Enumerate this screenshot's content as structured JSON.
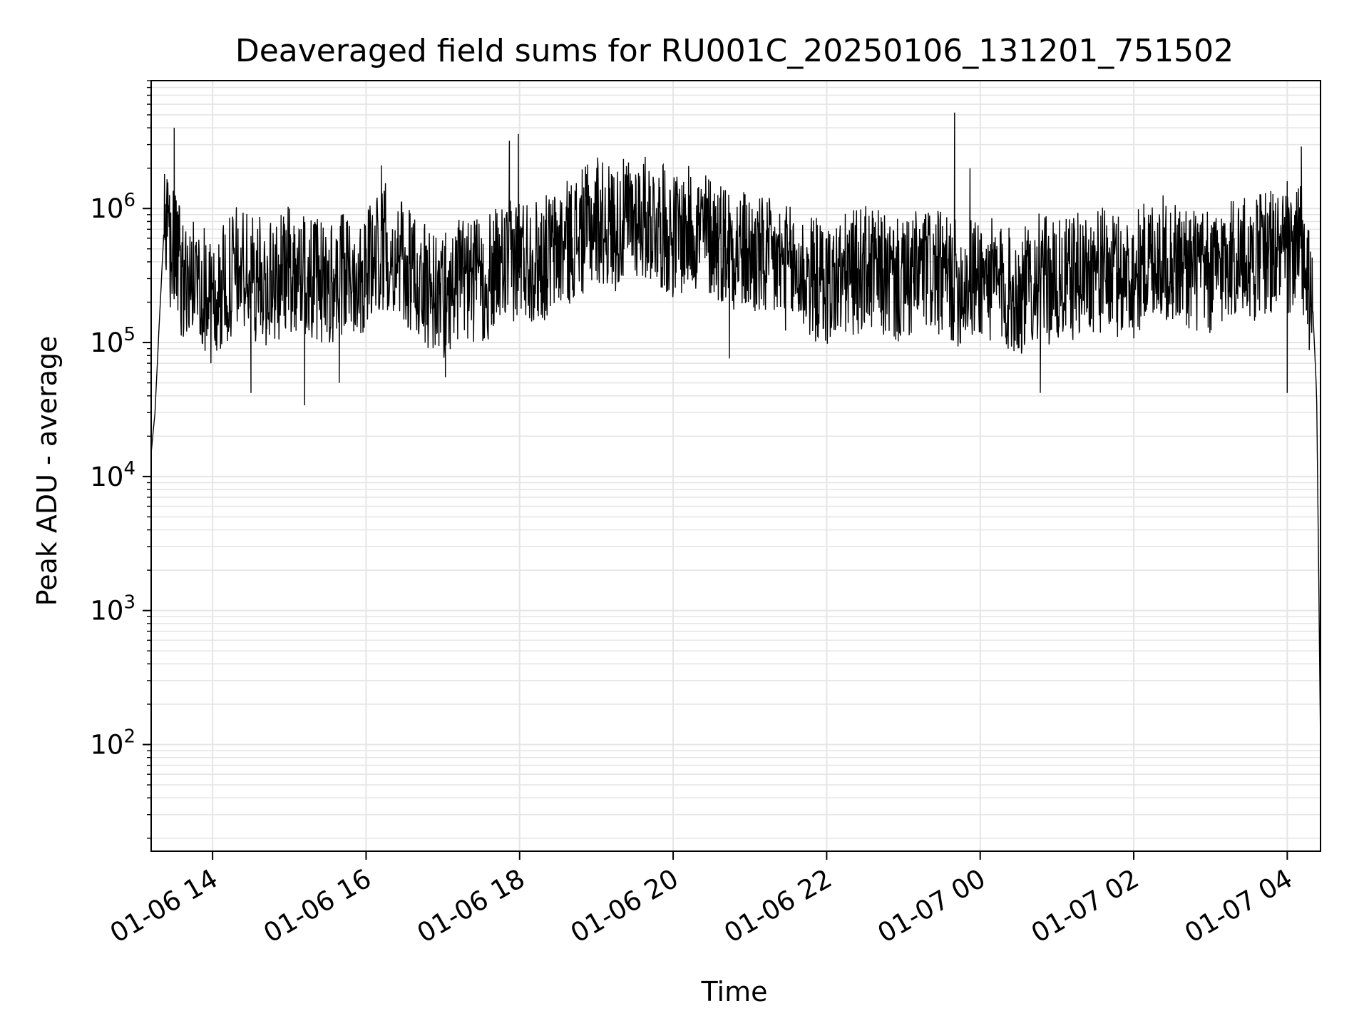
{
  "chart_data": {
    "type": "line",
    "title": "Deaveraged field sums for RU001C_20250106_131201_751502",
    "xlabel": "Time",
    "ylabel": "Peak ADU - average",
    "x_tick_labels": [
      "01-06 14",
      "01-06 16",
      "01-06 18",
      "01-06 20",
      "01-06 22",
      "01-07 00",
      "01-07 02",
      "01-07 04"
    ],
    "y_scale": "log",
    "y_tick_labels": [
      {
        "base": "10",
        "exp": "2",
        "value": 100
      },
      {
        "base": "10",
        "exp": "3",
        "value": 1000
      },
      {
        "base": "10",
        "exp": "4",
        "value": 10000
      },
      {
        "base": "10",
        "exp": "5",
        "value": 100000
      },
      {
        "base": "10",
        "exp": "6",
        "value": 1000000
      }
    ],
    "xlim": [
      "2025-01-06 13:12",
      "2025-01-07 04:26"
    ],
    "ylim": [
      16,
      9000000
    ],
    "grid": true,
    "line_color": "#000000",
    "grid_color": "#e5e5e5",
    "series": [
      {
        "x": [
          "2025-01-06 13:12",
          "2025-01-06 13:15",
          "2025-01-06 13:18",
          "2025-01-06 13:22",
          "2025-01-06 13:30",
          "2025-01-06 13:39",
          "2025-01-06 13:50",
          "2025-01-06 14:00",
          "2025-01-06 14:10",
          "2025-01-06 14:20",
          "2025-01-06 14:30",
          "2025-01-06 14:45",
          "2025-01-06 15:00",
          "2025-01-06 15:15",
          "2025-01-06 15:30",
          "2025-01-06 15:45",
          "2025-01-06 16:00",
          "2025-01-06 16:15",
          "2025-01-06 16:30",
          "2025-01-06 16:45",
          "2025-01-06 17:00",
          "2025-01-06 17:15",
          "2025-01-06 17:30",
          "2025-01-06 17:45",
          "2025-01-06 18:00",
          "2025-01-06 18:15",
          "2025-01-06 18:30",
          "2025-01-06 18:45",
          "2025-01-06 19:00",
          "2025-01-06 19:15",
          "2025-01-06 19:30",
          "2025-01-06 19:45",
          "2025-01-06 20:00",
          "2025-01-06 20:15",
          "2025-01-06 20:30",
          "2025-01-06 20:45",
          "2025-01-06 21:00",
          "2025-01-06 21:15",
          "2025-01-06 21:30",
          "2025-01-06 21:45",
          "2025-01-06 22:00",
          "2025-01-06 22:15",
          "2025-01-06 22:30",
          "2025-01-06 22:45",
          "2025-01-06 23:00",
          "2025-01-06 23:15",
          "2025-01-06 23:30",
          "2025-01-06 23:45",
          "2025-01-07 00:00",
          "2025-01-07 00:15",
          "2025-01-07 00:30",
          "2025-01-07 00:45",
          "2025-01-07 01:00",
          "2025-01-07 01:15",
          "2025-01-07 01:30",
          "2025-01-07 01:45",
          "2025-01-07 02:00",
          "2025-01-07 02:15",
          "2025-01-07 02:30",
          "2025-01-07 02:45",
          "2025-01-07 03:00",
          "2025-01-07 03:15",
          "2025-01-07 03:30",
          "2025-01-07 03:45",
          "2025-01-07 04:00",
          "2025-01-07 04:10",
          "2025-01-07 04:20",
          "2025-01-07 04:23",
          "2025-01-07 04:25",
          "2025-01-07 04:26"
        ],
        "y": [
          15000,
          30000,
          120000,
          700000,
          500000,
          300000,
          350000,
          200000,
          300000,
          400000,
          350000,
          300000,
          400000,
          350000,
          300000,
          350000,
          400000,
          600000,
          400000,
          300000,
          250000,
          350000,
          300000,
          400000,
          500000,
          450000,
          550000,
          700000,
          900000,
          800000,
          1000000,
          900000,
          700000,
          800000,
          700000,
          600000,
          500000,
          450000,
          400000,
          350000,
          300000,
          350000,
          400000,
          350000,
          300000,
          400000,
          350000,
          300000,
          350000,
          300000,
          250000,
          350000,
          300000,
          350000,
          400000,
          350000,
          350000,
          500000,
          450000,
          400000,
          350000,
          500000,
          450000,
          550000,
          500000,
          600000,
          180000,
          40000,
          800,
          100
        ]
      }
    ],
    "spikes": [
      {
        "x": "2025-01-06 13:30",
        "y": 4000000
      },
      {
        "x": "2025-01-06 16:12",
        "y": 2100000
      },
      {
        "x": "2025-01-06 17:52",
        "y": 3200000
      },
      {
        "x": "2025-01-06 17:59",
        "y": 3600000
      },
      {
        "x": "2025-01-06 19:01",
        "y": 2400000
      },
      {
        "x": "2025-01-06 19:52",
        "y": 2100000
      },
      {
        "x": "2025-01-06 23:40",
        "y": 5200000
      },
      {
        "x": "2025-01-06 23:52",
        "y": 2000000
      },
      {
        "x": "2025-01-07 04:00",
        "y": 1600000
      },
      {
        "x": "2025-01-07 04:11",
        "y": 2900000
      }
    ],
    "dips": [
      {
        "x": "2025-01-06 14:30",
        "y": 42000
      },
      {
        "x": "2025-01-06 15:12",
        "y": 34000
      },
      {
        "x": "2025-01-06 15:39",
        "y": 50000
      },
      {
        "x": "2025-01-06 17:02",
        "y": 55000
      },
      {
        "x": "2025-01-06 20:44",
        "y": 76000
      },
      {
        "x": "2025-01-07 00:47",
        "y": 42000
      },
      {
        "x": "2025-01-07 04:00",
        "y": 42000
      }
    ]
  }
}
